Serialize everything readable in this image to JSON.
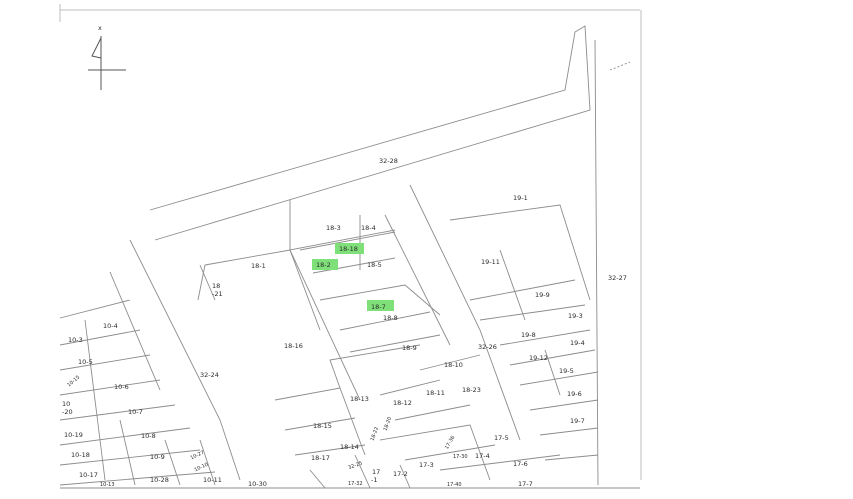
{
  "colors": {
    "highlight": "#7fe07a",
    "line": "#8c8c8c",
    "text": "#2a2a2a",
    "background": "#ffffff"
  },
  "compass": {
    "label": "x",
    "icon": "north-arrow-icon"
  },
  "parcels": {
    "p32_28": "32-28",
    "p19_1": "19-1",
    "p32_27": "32-27",
    "p18_3": "18-3",
    "p18_4": "18-4",
    "p18_18": "18-18",
    "p18_2": "18-2",
    "p18_5": "18-5",
    "p18_1": "18-1",
    "p18_21a": "18",
    "p18_21b": "-21",
    "p19_11": "19-11",
    "p19_9": "19-9",
    "p19_3": "19-3",
    "p18_7": "18-7",
    "p18_8": "18-8",
    "p19_8": "19-8",
    "p19_4": "19-4",
    "p10_4": "10-4",
    "p10_3": "10-3",
    "p18_16": "18-16",
    "p18_9": "18-9",
    "p32_26": "32-26",
    "p19_12": "19-12",
    "p19_5": "19-5",
    "p10_5": "10-5",
    "p10_15": "10-15",
    "p32_24": "32-24",
    "p18_10": "18-10",
    "p10_6": "10-6",
    "p18_11": "18-11",
    "p18_23": "18-23",
    "p19_6": "19-6",
    "p10_20a": "10",
    "p10_20b": "-20",
    "p18_13": "18-13",
    "p18_12": "18-12",
    "p10_7": "10-7",
    "p18_15": "18-15",
    "p18_20": "18-20",
    "p18_22": "18-22",
    "p19_7": "19-7",
    "p10_19": "10-19",
    "p10_8": "10-8",
    "p18_14": "18-14",
    "p17_36": "17-36",
    "p17_5": "17-5",
    "p10_9": "10-9",
    "p10_27": "10-27",
    "p10_18": "10-18",
    "p10_10": "10-10",
    "p18_17": "18-17",
    "p32_25": "32-25",
    "p17_3": "17-3",
    "p17_4": "17-4",
    "p17_6": "17-6",
    "p17_30": "17-30",
    "p17_17": "17",
    "p17_2": "17-2",
    "p10_17": "10-17",
    "p10_28": "10-28",
    "p10_11": "10-11",
    "p10_30": "10-30",
    "p17_1": "-1",
    "p17_7": "17-7",
    "p10_13": "10-13",
    "p17_32": "17-32",
    "p17_40": "17-40"
  }
}
